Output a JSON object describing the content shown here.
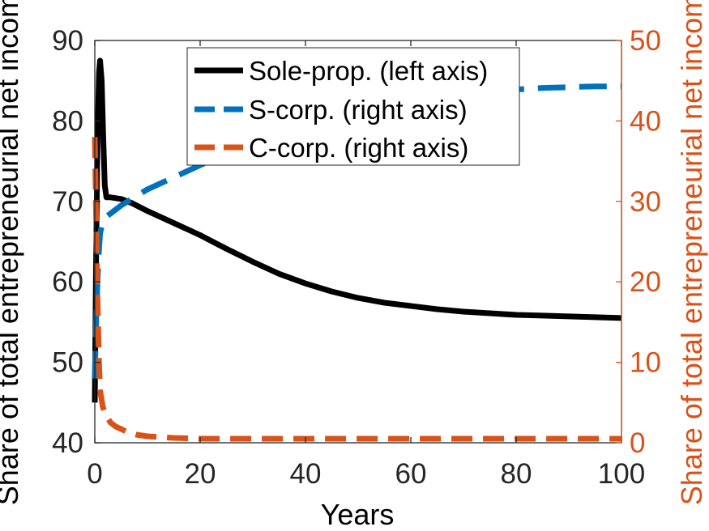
{
  "chart_data": {
    "type": "line",
    "xlabel": "Years",
    "ylabel_left": "Share of total entrepreneurial net income",
    "ylabel_right": "Share of total entrepreneurial net income",
    "xlim": [
      0,
      100
    ],
    "ylim_left": [
      40,
      90
    ],
    "ylim_right": [
      0,
      50
    ],
    "x_ticks": [
      0,
      20,
      40,
      60,
      80,
      100
    ],
    "y_ticks_left": [
      40,
      50,
      60,
      70,
      80,
      90
    ],
    "y_ticks_right": [
      0,
      10,
      20,
      30,
      40,
      50
    ],
    "grid": false,
    "legend_position": "top-center",
    "colors": {
      "left_axis": "#000000",
      "right_axis": "#D95319"
    },
    "series": [
      {
        "name": "Sole-prop. (left axis)",
        "axis": "left",
        "color": "#000000",
        "style": "solid",
        "x": [
          0,
          0.2,
          0.5,
          0.8,
          1.0,
          1.3,
          1.6,
          1.9,
          2.2,
          3,
          5,
          7,
          10,
          15,
          20,
          25,
          30,
          35,
          40,
          45,
          50,
          55,
          60,
          65,
          70,
          75,
          80,
          85,
          90,
          95,
          100
        ],
        "values": [
          45,
          60,
          78,
          86,
          87.5,
          85,
          78,
          72,
          70.5,
          70.5,
          70.3,
          69.8,
          68.8,
          67.3,
          65.8,
          64.1,
          62.5,
          61,
          59.8,
          58.8,
          58,
          57.4,
          57,
          56.6,
          56.3,
          56.1,
          55.9,
          55.8,
          55.7,
          55.6,
          55.5
        ]
      },
      {
        "name": "S-corp. (right axis)",
        "axis": "right",
        "color": "#0072BD",
        "style": "dashed",
        "x": [
          0,
          0.2,
          0.5,
          0.8,
          1,
          1.5,
          2,
          3,
          5,
          10,
          15,
          20,
          25,
          30,
          35,
          40,
          45,
          50,
          55,
          60,
          65,
          70,
          75,
          80,
          85,
          90,
          95,
          100
        ],
        "values": [
          8,
          14,
          20,
          24,
          26,
          27.5,
          28,
          28.5,
          29.5,
          31.5,
          33,
          34.5,
          36,
          37.3,
          38.5,
          39.5,
          40.5,
          41.3,
          42,
          42.5,
          43,
          43.4,
          43.7,
          43.9,
          44.1,
          44.2,
          44.3,
          44.3
        ]
      },
      {
        "name": "C-corp. (right axis)",
        "axis": "right",
        "color": "#D95319",
        "style": "dashed",
        "x": [
          0,
          0.2,
          0.5,
          0.8,
          1,
          1.5,
          2,
          3,
          4,
          6,
          8,
          10,
          15,
          20,
          30,
          40,
          50,
          60,
          70,
          80,
          90,
          100
        ],
        "values": [
          38,
          30,
          18,
          10,
          6.5,
          4.5,
          3.5,
          2.5,
          2,
          1.4,
          1,
          0.8,
          0.6,
          0.5,
          0.5,
          0.5,
          0.5,
          0.5,
          0.5,
          0.5,
          0.5,
          0.5
        ]
      }
    ]
  }
}
